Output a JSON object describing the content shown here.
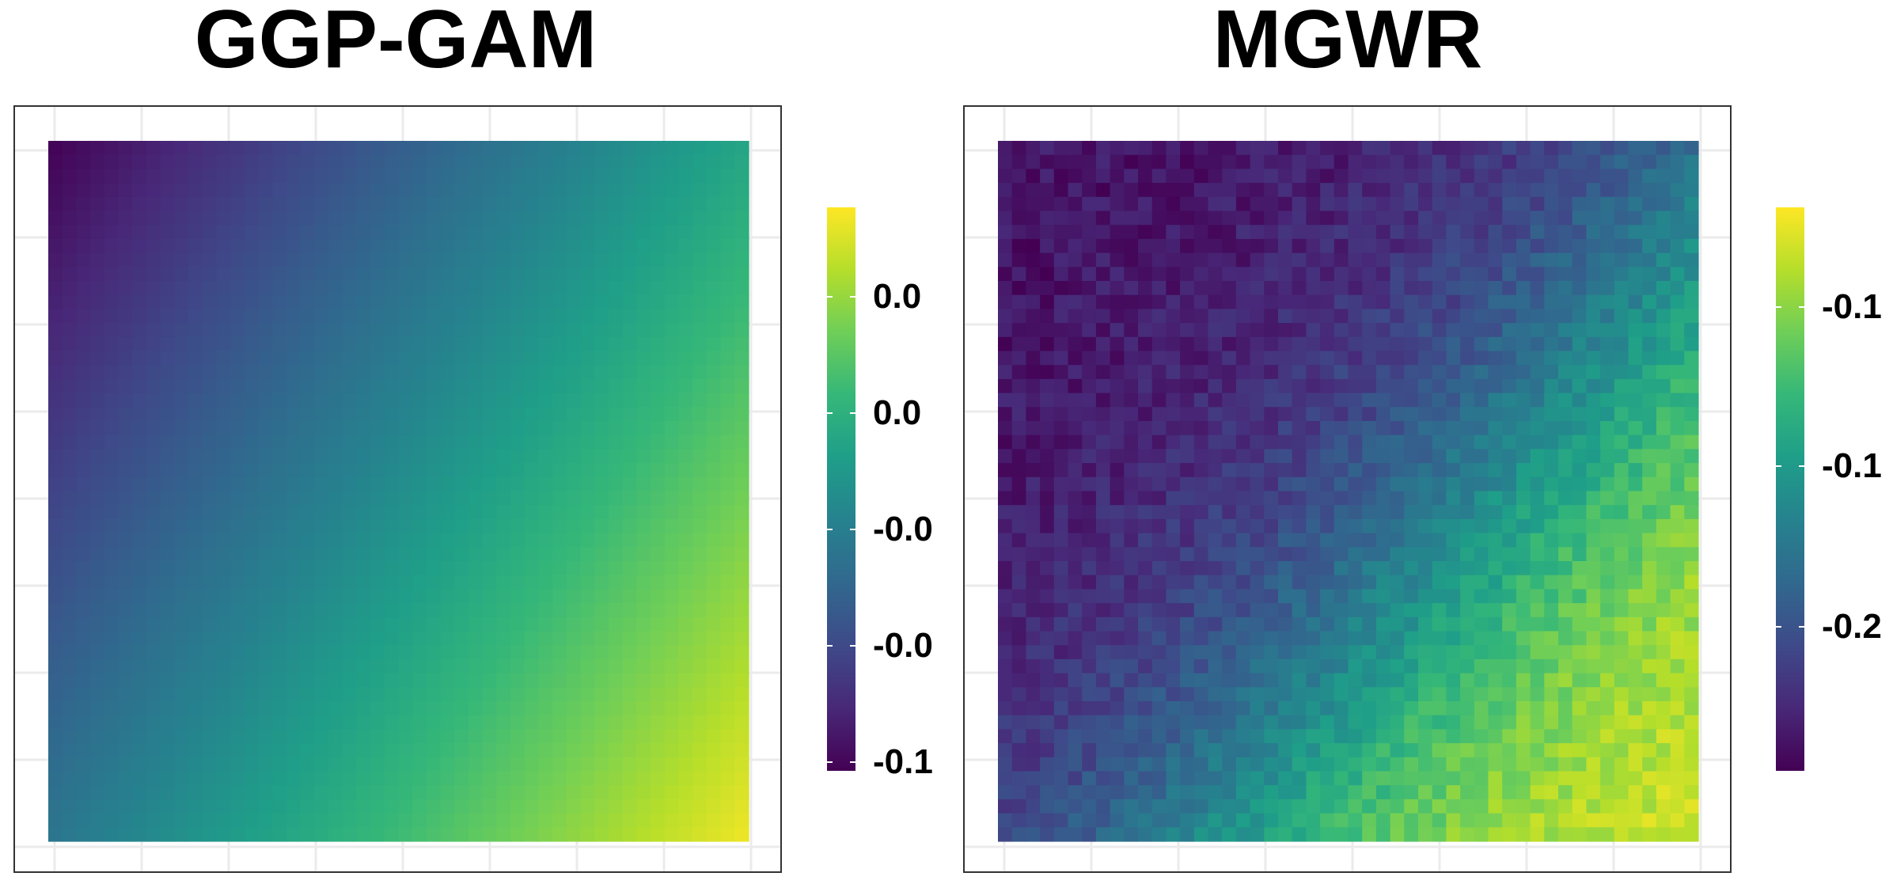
{
  "panels": [
    {
      "title": "GGP-GAM",
      "legend_ticks": [
        "0.0",
        "0.0",
        "-0.0",
        "-0.0",
        "-0.1"
      ],
      "chart_data": {
        "type": "heatmap",
        "title": "GGP-GAM",
        "grid_resolution": [
          50,
          50
        ],
        "value_range": "low (dark purple) at top-left to high (yellow) at bottom-right",
        "colorscale": "viridis",
        "legend_labels": [
          "0.0",
          "0.0",
          "-0.0",
          "-0.0",
          "-0.1"
        ],
        "legend_placement": "right",
        "axis_tick_labels_shown": false,
        "grid": true
      }
    },
    {
      "title": "MGWR",
      "legend_ticks": [
        "-0.1",
        "-0.1",
        "-0.2"
      ],
      "chart_data": {
        "type": "heatmap",
        "title": "MGWR",
        "grid_resolution": [
          50,
          50
        ],
        "value_range": "low (dark purple) at top-left to high (yellow) at bottom-right, noisy",
        "colorscale": "viridis",
        "legend_labels": [
          "-0.1",
          "-0.1",
          "-0.2"
        ],
        "legend_placement": "right",
        "axis_tick_labels_shown": false,
        "grid": true
      }
    }
  ],
  "colors": {
    "viridis_stops": [
      "#440154",
      "#482878",
      "#3e4a89",
      "#31688e",
      "#26828e",
      "#1f9e89",
      "#35b779",
      "#6ece58",
      "#b5de2b",
      "#fde725"
    ],
    "panel_border": "#333333",
    "grid": "#ebebeb"
  }
}
